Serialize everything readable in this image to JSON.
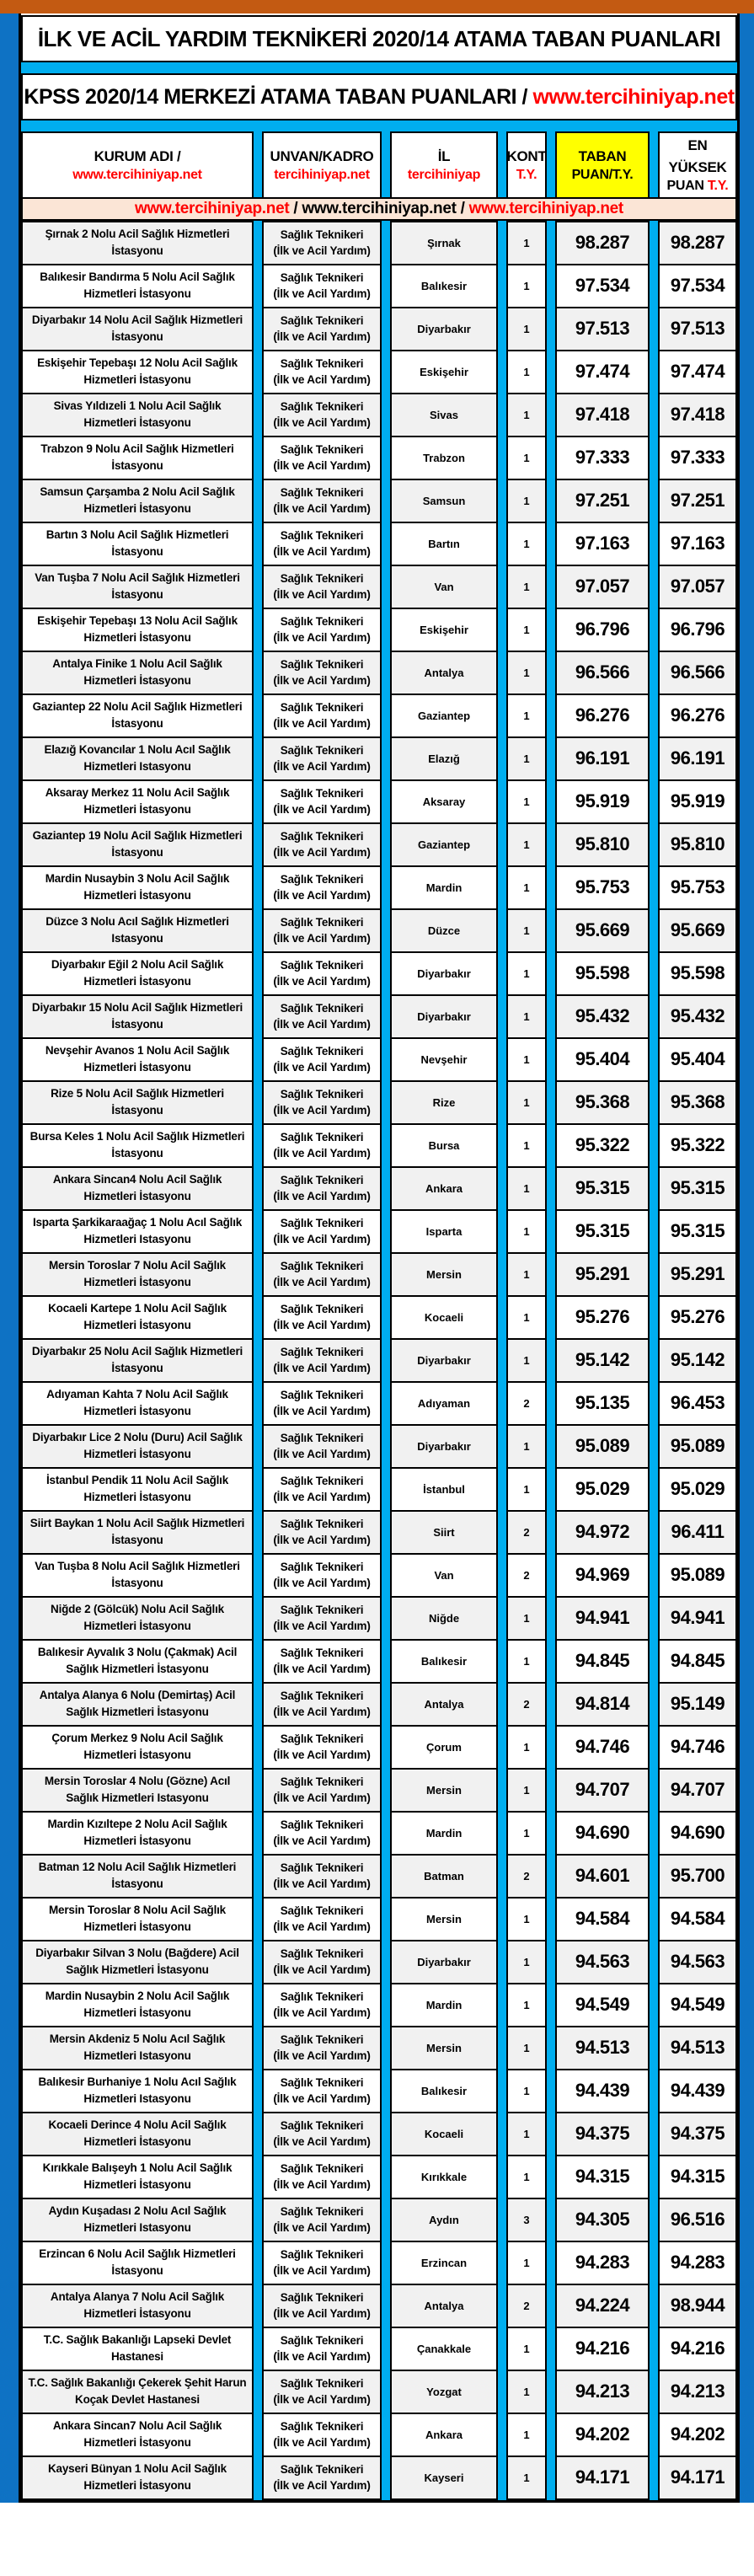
{
  "header": {
    "title": "İLK VE ACİL YARDIM TEKNİKERİ 2020/14 ATAMA TABAN PUANLARI",
    "subtitle_black": "KPSS 2020/14 MERKEZİ ATAMA TABAN PUANLARI / ",
    "subtitle_red": "www.tercihiniyap.net"
  },
  "colors": {
    "top_bar": "#C35A12",
    "side_bar": "#0E72C4",
    "stripe": "#00AEEF",
    "highlight": "#FFFF00",
    "marquee_bg": "#FBE5D6",
    "accent_red": "#FF0000",
    "band_gray": "#F1F1F1"
  },
  "table": {
    "headers": {
      "kurum_line1": "KURUM ADI /",
      "kurum_line2": "www.tercihiniyap.net",
      "unvan_line1": "UNVAN/KADRO",
      "unvan_line2": "tercihiniyap.net",
      "il_line1": "İL",
      "il_line2": "tercihiniyap",
      "kont_line1": "KONT",
      "kont_line2": "T.Y.",
      "taban_line1": "TABAN",
      "taban_line2": "PUAN/T.Y.",
      "yuksek_line1": "EN YÜKSEK",
      "yuksek_line2_black": "PUAN ",
      "yuksek_line2_red": "T.Y."
    },
    "marquee": {
      "red1": "www.tercihiniyap.net",
      "black_mid": " / www.tercihiniyap.net / ",
      "red2": "www.tercihiniyap.net"
    },
    "unvan_value": {
      "line1": "Sağlık Teknikeri",
      "line2": "(İlk ve Acil Yardım)"
    },
    "rows": [
      {
        "kurum": "Şırnak 2 Nolu Acil Sağlık Hizmetleri İstasyonu",
        "il": "Şırnak",
        "kont": "1",
        "taban": "98.287",
        "yuksek": "98.287"
      },
      {
        "kurum": "Balıkesir Bandırma 5 Nolu Acil Sağlık Hizmetleri İstasyonu",
        "il": "Balıkesir",
        "kont": "1",
        "taban": "97.534",
        "yuksek": "97.534"
      },
      {
        "kurum": "Diyarbakır 14 Nolu Acil Sağlık Hizmetleri İstasyonu",
        "il": "Diyarbakır",
        "kont": "1",
        "taban": "97.513",
        "yuksek": "97.513"
      },
      {
        "kurum": "Eskişehir Tepebaşı 12 Nolu Acil Sağlık Hizmetleri İstasyonu",
        "il": "Eskişehir",
        "kont": "1",
        "taban": "97.474",
        "yuksek": "97.474"
      },
      {
        "kurum": "Sivas Yıldızeli 1 Nolu Acil Sağlık Hizmetleri İstasyonu",
        "il": "Sivas",
        "kont": "1",
        "taban": "97.418",
        "yuksek": "97.418"
      },
      {
        "kurum": "Trabzon 9 Nolu Acil Sağlık Hizmetleri İstasyonu",
        "il": "Trabzon",
        "kont": "1",
        "taban": "97.333",
        "yuksek": "97.333"
      },
      {
        "kurum": "Samsun Çarşamba 2 Nolu Acil Sağlık Hizmetleri İstasyonu",
        "il": "Samsun",
        "kont": "1",
        "taban": "97.251",
        "yuksek": "97.251"
      },
      {
        "kurum": "Bartın 3 Nolu Acil Sağlık Hizmetleri İstasyonu",
        "il": "Bartın",
        "kont": "1",
        "taban": "97.163",
        "yuksek": "97.163"
      },
      {
        "kurum": "Van Tuşba 7 Nolu Acil Sağlık Hizmetleri İstasyonu",
        "il": "Van",
        "kont": "1",
        "taban": "97.057",
        "yuksek": "97.057"
      },
      {
        "kurum": "Eskişehir Tepebaşı 13 Nolu Acil Sağlık Hizmetleri İstasyonu",
        "il": "Eskişehir",
        "kont": "1",
        "taban": "96.796",
        "yuksek": "96.796"
      },
      {
        "kurum": "Antalya Finike 1 Nolu Acil Sağlık Hizmetleri İstasyonu",
        "il": "Antalya",
        "kont": "1",
        "taban": "96.566",
        "yuksek": "96.566"
      },
      {
        "kurum": "Gaziantep 22 Nolu Acil Sağlık Hizmetleri İstasyonu",
        "il": "Gaziantep",
        "kont": "1",
        "taban": "96.276",
        "yuksek": "96.276"
      },
      {
        "kurum": "Elazığ Kovancılar 1 Nolu Acıl Sağlık Hizmetleri Istasyonu",
        "il": "Elazığ",
        "kont": "1",
        "taban": "96.191",
        "yuksek": "96.191"
      },
      {
        "kurum": "Aksaray Merkez 11 Nolu Acil Sağlık Hizmetleri İstasyonu",
        "il": "Aksaray",
        "kont": "1",
        "taban": "95.919",
        "yuksek": "95.919"
      },
      {
        "kurum": "Gaziantep 19 Nolu Acil Sağlık Hizmetleri İstasyonu",
        "il": "Gaziantep",
        "kont": "1",
        "taban": "95.810",
        "yuksek": "95.810"
      },
      {
        "kurum": "Mardin Nusaybin 3 Nolu Acil Sağlık Hizmetleri İstasyonu",
        "il": "Mardin",
        "kont": "1",
        "taban": "95.753",
        "yuksek": "95.753"
      },
      {
        "kurum": "Düzce 3 Nolu Acıl Sağlık Hizmetleri Istasyonu",
        "il": "Düzce",
        "kont": "1",
        "taban": "95.669",
        "yuksek": "95.669"
      },
      {
        "kurum": "Diyarbakır Eğil 2 Nolu Acil Sağlık Hizmetleri İstasyonu",
        "il": "Diyarbakır",
        "kont": "1",
        "taban": "95.598",
        "yuksek": "95.598"
      },
      {
        "kurum": "Diyarbakır 15 Nolu Acil Sağlık Hizmetleri İstasyonu",
        "il": "Diyarbakır",
        "kont": "1",
        "taban": "95.432",
        "yuksek": "95.432"
      },
      {
        "kurum": "Nevşehir Avanos 1 Nolu Acil Sağlık Hizmetleri İstasyonu",
        "il": "Nevşehir",
        "kont": "1",
        "taban": "95.404",
        "yuksek": "95.404"
      },
      {
        "kurum": "Rize 5 Nolu Acil Sağlık Hizmetleri İstasyonu",
        "il": "Rize",
        "kont": "1",
        "taban": "95.368",
        "yuksek": "95.368"
      },
      {
        "kurum": "Bursa Keles 1 Nolu Acil Sağlık Hizmetleri İstasyonu",
        "il": "Bursa",
        "kont": "1",
        "taban": "95.322",
        "yuksek": "95.322"
      },
      {
        "kurum": "Ankara Sincan4 Nolu Acil Sağlık Hizmetleri İstasyonu",
        "il": "Ankara",
        "kont": "1",
        "taban": "95.315",
        "yuksek": "95.315"
      },
      {
        "kurum": "Isparta Şarkikaraağaç 1 Nolu Acıl Sağlık Hizmetleri Istasyonu",
        "il": "Isparta",
        "kont": "1",
        "taban": "95.315",
        "yuksek": "95.315"
      },
      {
        "kurum": "Mersin Toroslar 7 Nolu Acil Sağlık Hizmetleri İstasyonu",
        "il": "Mersin",
        "kont": "1",
        "taban": "95.291",
        "yuksek": "95.291"
      },
      {
        "kurum": "Kocaeli Kartepe 1 Nolu Acil Sağlık Hizmetleri İstasyonu",
        "il": "Kocaeli",
        "kont": "1",
        "taban": "95.276",
        "yuksek": "95.276"
      },
      {
        "kurum": "Diyarbakır 25 Nolu Acil Sağlık Hizmetleri İstasyonu",
        "il": "Diyarbakır",
        "kont": "1",
        "taban": "95.142",
        "yuksek": "95.142"
      },
      {
        "kurum": "Adıyaman Kahta 7 Nolu Acil Sağlık Hizmetleri İstasyonu",
        "il": "Adıyaman",
        "kont": "2",
        "taban": "95.135",
        "yuksek": "96.453"
      },
      {
        "kurum": "Diyarbakır Lice 2 Nolu (Duru) Acil Sağlık Hizmetleri İstasyonu",
        "il": "Diyarbakır",
        "kont": "1",
        "taban": "95.089",
        "yuksek": "95.089"
      },
      {
        "kurum": "İstanbul Pendik 11 Nolu Acil Sağlık Hizmetleri İstasyonu",
        "il": "İstanbul",
        "kont": "1",
        "taban": "95.029",
        "yuksek": "95.029"
      },
      {
        "kurum": "Siirt Baykan 1 Nolu Acil Sağlık Hizmetleri İstasyonu",
        "il": "Siirt",
        "kont": "2",
        "taban": "94.972",
        "yuksek": "96.411"
      },
      {
        "kurum": "Van Tuşba 8 Nolu Acil Sağlık Hizmetleri İstasyonu",
        "il": "Van",
        "kont": "2",
        "taban": "94.969",
        "yuksek": "95.089"
      },
      {
        "kurum": "Niğde 2 (Gölcük) Nolu Acil Sağlık Hizmetleri İstasyonu",
        "il": "Niğde",
        "kont": "1",
        "taban": "94.941",
        "yuksek": "94.941"
      },
      {
        "kurum": "Balıkesir Ayvalık 3 Nolu (Çakmak) Acil Sağlık Hizmetleri İstasyonu",
        "il": "Balıkesir",
        "kont": "1",
        "taban": "94.845",
        "yuksek": "94.845"
      },
      {
        "kurum": "Antalya Alanya 6 Nolu (Demirtaş) Acil Sağlık Hizmetleri İstasyonu",
        "il": "Antalya",
        "kont": "2",
        "taban": "94.814",
        "yuksek": "95.149"
      },
      {
        "kurum": "Çorum Merkez 9 Nolu Acil Sağlık Hizmetleri İstasyonu",
        "il": "Çorum",
        "kont": "1",
        "taban": "94.746",
        "yuksek": "94.746"
      },
      {
        "kurum": "Mersin Toroslar 4 Nolu (Gözne) Acıl Sağlık Hizmetleri Istasyonu",
        "il": "Mersin",
        "kont": "1",
        "taban": "94.707",
        "yuksek": "94.707"
      },
      {
        "kurum": "Mardin Kızıltepe 2 Nolu Acil Sağlık Hizmetleri İstasyonu",
        "il": "Mardin",
        "kont": "1",
        "taban": "94.690",
        "yuksek": "94.690"
      },
      {
        "kurum": "Batman 12 Nolu Acil Sağlık Hizmetleri İstasyonu",
        "il": "Batman",
        "kont": "2",
        "taban": "94.601",
        "yuksek": "95.700"
      },
      {
        "kurum": "Mersin Toroslar 8 Nolu Acil Sağlık Hizmetleri İstasyonu",
        "il": "Mersin",
        "kont": "1",
        "taban": "94.584",
        "yuksek": "94.584"
      },
      {
        "kurum": "Diyarbakır Silvan 3 Nolu (Bağdere) Acil Sağlık Hizmetleri İstasyonu",
        "il": "Diyarbakır",
        "kont": "1",
        "taban": "94.563",
        "yuksek": "94.563"
      },
      {
        "kurum": "Mardin Nusaybin 2 Nolu Acil Sağlık Hizmetleri İstasyonu",
        "il": "Mardin",
        "kont": "1",
        "taban": "94.549",
        "yuksek": "94.549"
      },
      {
        "kurum": "Mersin Akdeniz 5 Nolu Acıl Sağlık Hizmetleri Istasyonu",
        "il": "Mersin",
        "kont": "1",
        "taban": "94.513",
        "yuksek": "94.513"
      },
      {
        "kurum": "Balıkesir Burhaniye 1 Nolu Acıl Sağlık Hizmetleri Istasyonu",
        "il": "Balıkesir",
        "kont": "1",
        "taban": "94.439",
        "yuksek": "94.439"
      },
      {
        "kurum": "Kocaeli Derince 4 Nolu Acil Sağlık Hizmetleri İstasyonu",
        "il": "Kocaeli",
        "kont": "1",
        "taban": "94.375",
        "yuksek": "94.375"
      },
      {
        "kurum": "Kırıkkale Balışeyh 1 Nolu Acil Sağlık Hizmetleri İstasyonu",
        "il": "Kırıkkale",
        "kont": "1",
        "taban": "94.315",
        "yuksek": "94.315"
      },
      {
        "kurum": "Aydın Kuşadası 2 Nolu Acıl Sağlık Hizmetleri Istasyonu",
        "il": "Aydın",
        "kont": "3",
        "taban": "94.305",
        "yuksek": "96.516"
      },
      {
        "kurum": "Erzincan 6 Nolu Acil Sağlık Hizmetleri İstasyonu",
        "il": "Erzincan",
        "kont": "1",
        "taban": "94.283",
        "yuksek": "94.283"
      },
      {
        "kurum": "Antalya Alanya 7 Nolu Acil Sağlık Hizmetleri İstasyonu",
        "il": "Antalya",
        "kont": "2",
        "taban": "94.224",
        "yuksek": "98.944"
      },
      {
        "kurum": "T.C. Sağlık Bakanlığı Lapseki Devlet Hastanesi",
        "il": "Çanakkale",
        "kont": "1",
        "taban": "94.216",
        "yuksek": "94.216"
      },
      {
        "kurum": "T.C. Sağlık Bakanlığı Çekerek Şehit Harun Koçak Devlet Hastanesi",
        "il": "Yozgat",
        "kont": "1",
        "taban": "94.213",
        "yuksek": "94.213"
      },
      {
        "kurum": "Ankara Sincan7 Nolu Acil Sağlık Hizmetleri İstasyonu",
        "il": "Ankara",
        "kont": "1",
        "taban": "94.202",
        "yuksek": "94.202"
      },
      {
        "kurum": "Kayseri Bünyan 1 Nolu Acil Sağlık Hizmetleri İstasyonu",
        "il": "Kayseri",
        "kont": "1",
        "taban": "94.171",
        "yuksek": "94.171"
      }
    ]
  }
}
